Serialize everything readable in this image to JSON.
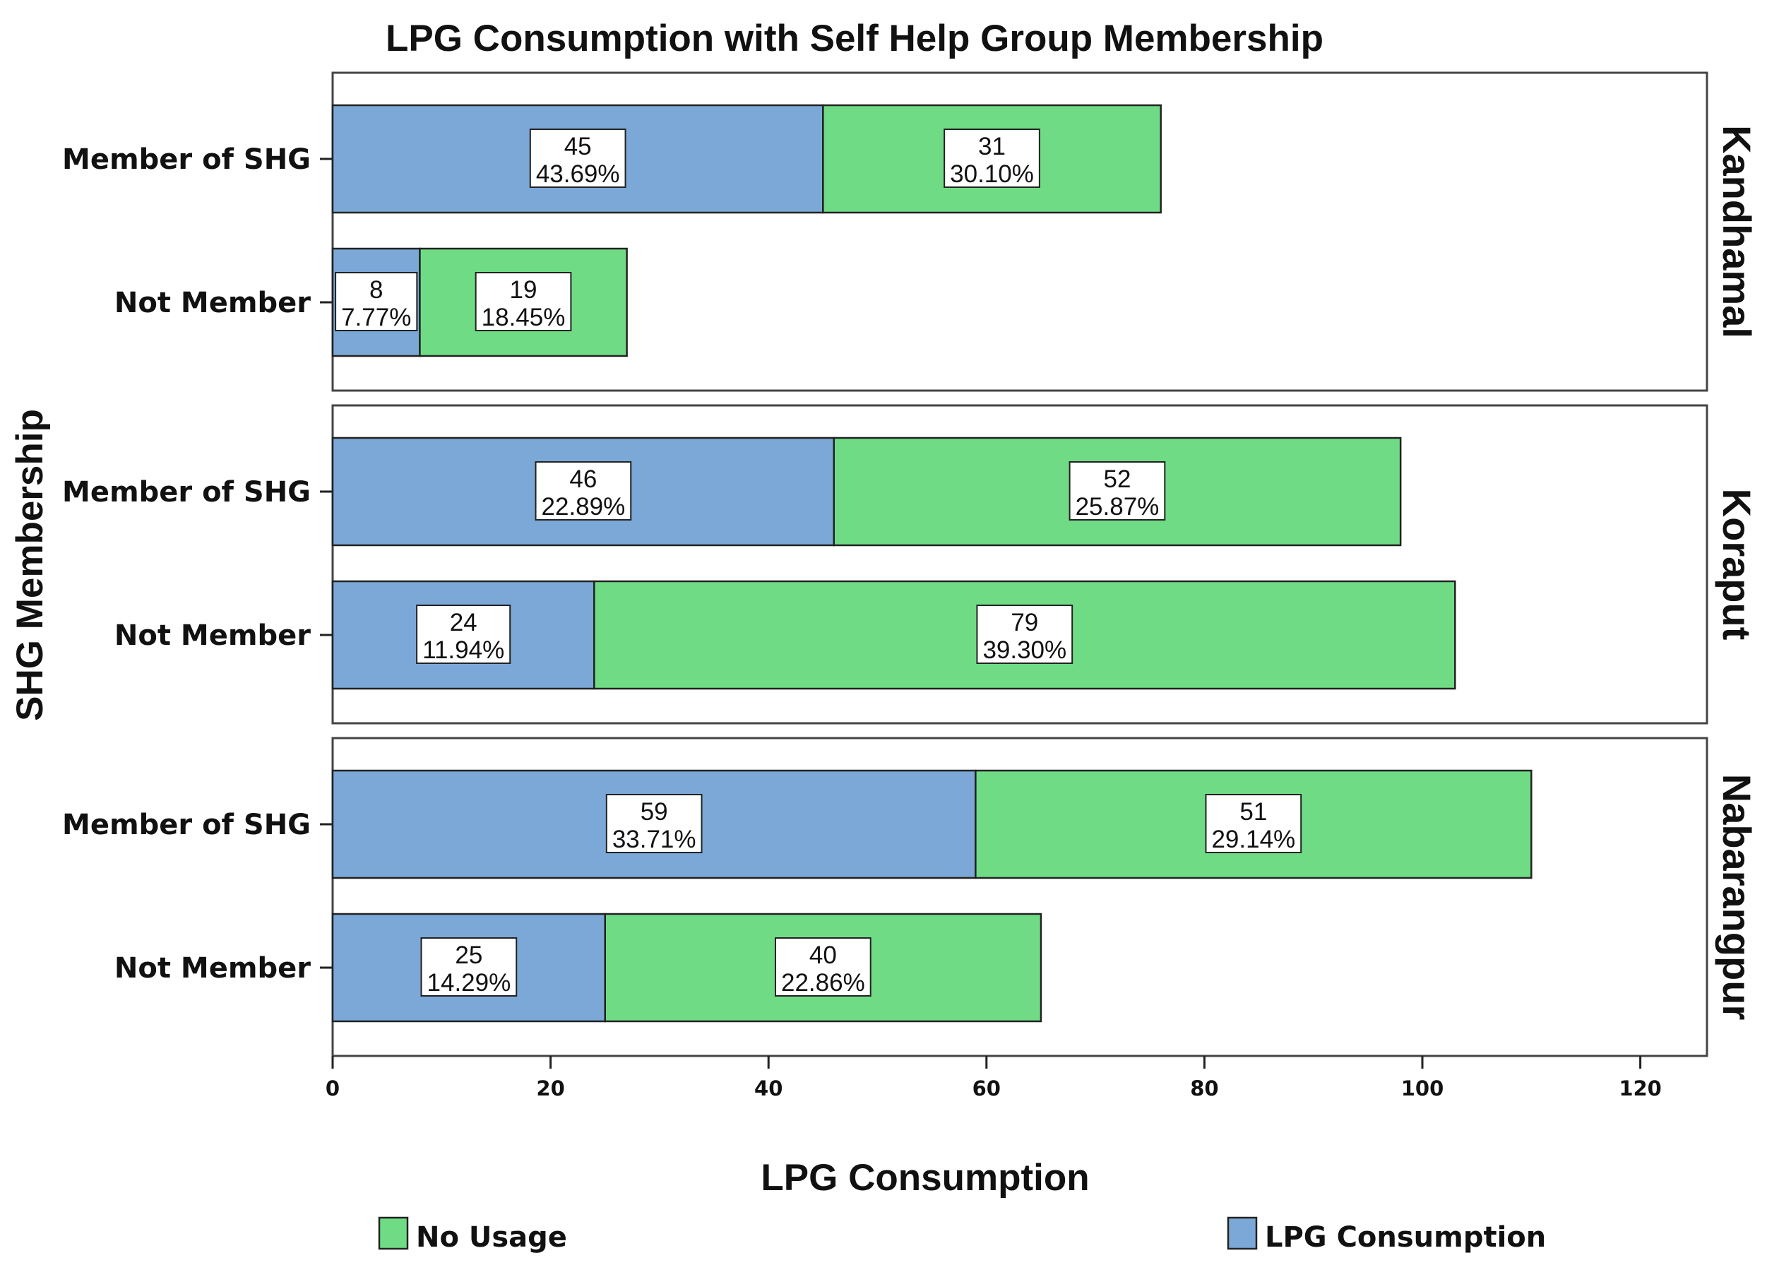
{
  "chart_data": {
    "type": "bar",
    "orientation": "horizontal",
    "stacked": true,
    "title": "LPG Consumption with Self Help Group Membership",
    "xlabel": "LPG Consumption",
    "ylabel": "SHG Membership",
    "xlim": [
      0,
      126
    ],
    "xticks": [
      "0",
      "20",
      "40",
      "60",
      "80",
      "100",
      "120"
    ],
    "xtick_values": [
      0,
      20,
      40,
      60,
      80,
      100,
      120
    ],
    "categories": [
      "Member of SHG",
      "Not Member"
    ],
    "legend": [
      {
        "name": "No Usage",
        "color": "#6fdc85"
      },
      {
        "name": "LPG Consumption",
        "color": "#7ba8d6"
      }
    ],
    "series_colors": {
      "lpg": "#7ba8d6",
      "no_usage": "#6fdc85"
    },
    "panels": [
      {
        "facet": "Kandhamal",
        "bars": [
          {
            "category": "Member of SHG",
            "lpg": 45,
            "lpg_pct": "43.69%",
            "no_usage": 31,
            "no_usage_pct": "30.10%"
          },
          {
            "category": "Not Member",
            "lpg": 8,
            "lpg_pct": "7.77%",
            "no_usage": 19,
            "no_usage_pct": "18.45%"
          }
        ]
      },
      {
        "facet": "Koraput",
        "bars": [
          {
            "category": "Member of SHG",
            "lpg": 46,
            "lpg_pct": "22.89%",
            "no_usage": 52,
            "no_usage_pct": "25.87%"
          },
          {
            "category": "Not Member",
            "lpg": 24,
            "lpg_pct": "11.94%",
            "no_usage": 79,
            "no_usage_pct": "39.30%"
          }
        ]
      },
      {
        "facet": "Nabarangpur",
        "bars": [
          {
            "category": "Member of SHG",
            "lpg": 59,
            "lpg_pct": "33.71%",
            "no_usage": 51,
            "no_usage_pct": "29.14%"
          },
          {
            "category": "Not Member",
            "lpg": 25,
            "lpg_pct": "14.29%",
            "no_usage": 40,
            "no_usage_pct": "22.86%"
          }
        ]
      }
    ]
  }
}
